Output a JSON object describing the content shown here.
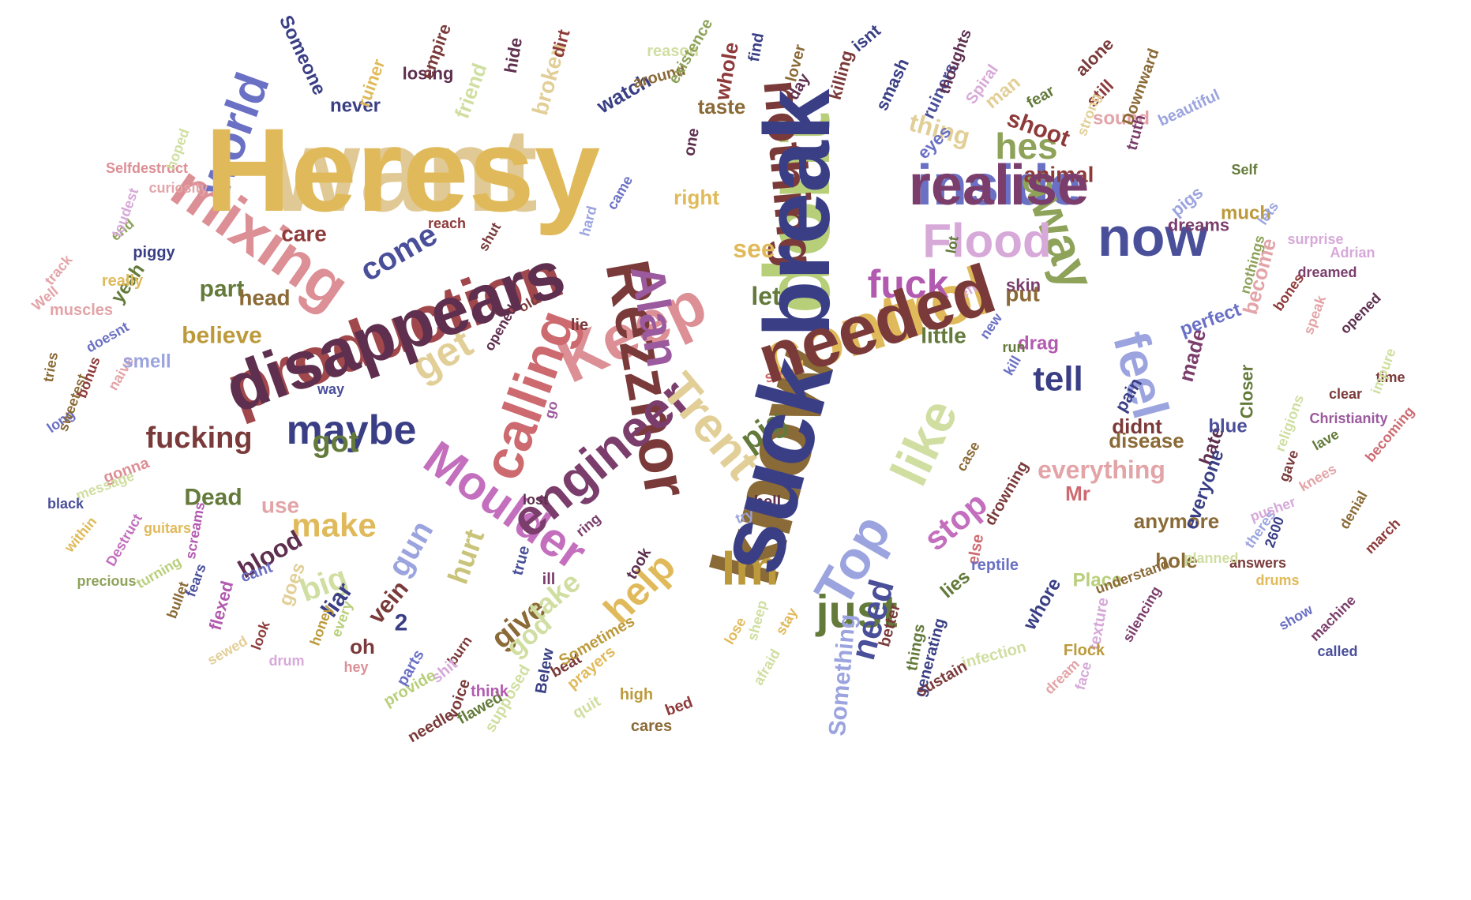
{
  "words": [
    {
      "text": "want",
      "color": "#e0c995"
    },
    {
      "text": "dont",
      "color": "#b8cf7a"
    },
    {
      "text": "know",
      "color": "#8a6a36"
    },
    {
      "text": "production",
      "color": "#a0484c"
    },
    {
      "text": "control",
      "color": "#e0ba5a"
    },
    {
      "text": "inside",
      "color": "#6a70c4"
    },
    {
      "text": "Keep",
      "color": "#dc8f95"
    },
    {
      "text": "Rezznor",
      "color": "#7b3a3a"
    },
    {
      "text": "calling",
      "color": "#cd6a70"
    },
    {
      "text": "Moulder",
      "color": "#c36fbe"
    },
    {
      "text": "engineer",
      "color": "#7b3e6c"
    },
    {
      "text": "Trent",
      "color": "#e2cf98"
    },
    {
      "text": "away",
      "color": "#8ea25a"
    },
    {
      "text": "mixing",
      "color": "#dc8f95"
    },
    {
      "text": "now",
      "color": "#4a4f9a"
    },
    {
      "text": "Top",
      "color": "#9ba4df"
    },
    {
      "text": "Alan",
      "color": "#9c5a9e"
    },
    {
      "text": "nothing",
      "color": "#7b3a3a"
    },
    {
      "text": "Flood",
      "color": "#d7a9d9"
    },
    {
      "text": "like",
      "color": "#d0dea1"
    },
    {
      "text": "feel",
      "color": "#9ba4df"
    },
    {
      "text": "Im",
      "color": "#bc9a3c"
    },
    {
      "text": "world",
      "color": "#6a70c4"
    },
    {
      "text": "help",
      "color": "#e0ba5a"
    },
    {
      "text": "maybe",
      "color": "#3a3f85"
    },
    {
      "text": "get",
      "color": "#e2cf98"
    },
    {
      "text": "just",
      "color": "#637a3a"
    },
    {
      "text": "fuck",
      "color": "#b25ab0"
    },
    {
      "text": "hes",
      "color": "#8ea25a"
    },
    {
      "text": "make",
      "color": "#e0ba5a"
    },
    {
      "text": "come",
      "color": "#4a4f9a"
    },
    {
      "text": "tell",
      "color": "#3a3f85"
    },
    {
      "text": "need",
      "color": "#4a4f9a"
    },
    {
      "text": "stop",
      "color": "#c36fbe"
    },
    {
      "text": "everything",
      "color": "#e3a4a8"
    },
    {
      "text": "Something",
      "color": "#9ba4df"
    },
    {
      "text": "shoot",
      "color": "#8e3a3a"
    },
    {
      "text": "thing",
      "color": "#e2cf98"
    },
    {
      "text": "animal",
      "color": "#8e3a3a"
    },
    {
      "text": "give",
      "color": "#8a6a36"
    },
    {
      "text": "take",
      "color": "#d0dea1"
    },
    {
      "text": "god",
      "color": "#d0dea1"
    },
    {
      "text": "hurt",
      "color": "#c9c47a"
    },
    {
      "text": "pig",
      "color": "#637a3a"
    },
    {
      "text": "let",
      "color": "#637a3a"
    },
    {
      "text": "see",
      "color": "#e0ba5a"
    },
    {
      "text": "big",
      "color": "#d0dea1"
    },
    {
      "text": "gun",
      "color": "#9ba4df"
    },
    {
      "text": "blood",
      "color": "#5e2f4f"
    },
    {
      "text": "got",
      "color": "#637a3a"
    },
    {
      "text": "fucking",
      "color": "#7b3a3a"
    },
    {
      "text": "Dead",
      "color": "#637a3a"
    },
    {
      "text": "use",
      "color": "#e3a4a8"
    },
    {
      "text": "believe",
      "color": "#bc9a3c"
    },
    {
      "text": "part",
      "color": "#637a3a"
    },
    {
      "text": "head",
      "color": "#8a6a36"
    },
    {
      "text": "care",
      "color": "#8e3a3a"
    },
    {
      "text": "didnt",
      "color": "#7b3a3a"
    },
    {
      "text": "disease",
      "color": "#8a6a36"
    },
    {
      "text": "anymore",
      "color": "#8a6a36"
    },
    {
      "text": "made",
      "color": "#7b3e6c"
    },
    {
      "text": "put",
      "color": "#8a6a36"
    },
    {
      "text": "little",
      "color": "#637a3a"
    },
    {
      "text": "Mr",
      "color": "#cd6a70"
    },
    {
      "text": "hole",
      "color": "#8a6a36"
    },
    {
      "text": "whore",
      "color": "#3a3f85"
    },
    {
      "text": "lies",
      "color": "#637a3a"
    },
    {
      "text": "Place",
      "color": "#b8cf7a"
    },
    {
      "text": "hate",
      "color": "#5e2f4f"
    },
    {
      "text": "everyone",
      "color": "#3a3f85"
    },
    {
      "text": "blue",
      "color": "#4a4f9a"
    },
    {
      "text": "Closer",
      "color": "#637a3a"
    },
    {
      "text": "pain",
      "color": "#3a3f85"
    },
    {
      "text": "drag",
      "color": "#b25ab0"
    },
    {
      "text": "skin",
      "color": "#7b3e6c"
    },
    {
      "text": "perfect",
      "color": "#6a70c4"
    },
    {
      "text": "become",
      "color": "#e3a4a8"
    },
    {
      "text": "much",
      "color": "#bc9a3c"
    },
    {
      "text": "pigs",
      "color": "#9ba4df"
    },
    {
      "text": "dreams",
      "color": "#7b3e6c"
    },
    {
      "text": "sound",
      "color": "#e3a4a8"
    },
    {
      "text": "still",
      "color": "#8e3a3a"
    },
    {
      "text": "fear",
      "color": "#637a3a"
    },
    {
      "text": "man",
      "color": "#e2cf98"
    },
    {
      "text": "eyes",
      "color": "#6a70c4"
    },
    {
      "text": "ruiners",
      "color": "#4a4f9a"
    },
    {
      "text": "smash",
      "color": "#3a3f85"
    },
    {
      "text": "killing",
      "color": "#7b3a3a"
    },
    {
      "text": "whole",
      "color": "#8e3a3a"
    },
    {
      "text": "taste",
      "color": "#8a6a36"
    },
    {
      "text": "watch",
      "color": "#3a3f85"
    },
    {
      "text": "broken",
      "color": "#e2cf98"
    },
    {
      "text": "friend",
      "color": "#d0dea1"
    },
    {
      "text": "never",
      "color": "#3a3f85"
    },
    {
      "text": "losing",
      "color": "#5e2f4f"
    },
    {
      "text": "reason",
      "color": "#d0dea1"
    },
    {
      "text": "around",
      "color": "#8a6a36"
    },
    {
      "text": "one",
      "color": "#5e2f4f"
    },
    {
      "text": "right",
      "color": "#e0ba5a"
    },
    {
      "text": "Someone",
      "color": "#3a3f85"
    },
    {
      "text": "ruiner",
      "color": "#e0ba5a"
    },
    {
      "text": "empire",
      "color": "#7b3a3a"
    },
    {
      "text": "hide",
      "color": "#5e2f4f"
    },
    {
      "text": "dirt",
      "color": "#8e3a3a"
    },
    {
      "text": "existence",
      "color": "#8ea25a"
    },
    {
      "text": "find",
      "color": "#3a3f85"
    },
    {
      "text": "lover",
      "color": "#8a6a36"
    },
    {
      "text": "isnt",
      "color": "#3a3f85"
    },
    {
      "text": "thoughts",
      "color": "#5e2f4f"
    },
    {
      "text": "Spiral",
      "color": "#d7a9d9"
    },
    {
      "text": "alone",
      "color": "#7b3a3a"
    },
    {
      "text": "Downward",
      "color": "#8a6a36"
    },
    {
      "text": "strong",
      "color": "#e2cf98"
    },
    {
      "text": "day",
      "color": "#5e2f4f"
    },
    {
      "text": "beautiful",
      "color": "#9ba4df"
    },
    {
      "text": "truth",
      "color": "#7b3e6c"
    },
    {
      "text": "Self",
      "color": "#637a3a"
    },
    {
      "text": "lets",
      "color": "#9ba4df"
    },
    {
      "text": "surprise",
      "color": "#d7a9d9"
    },
    {
      "text": "Adrian",
      "color": "#d7a9d9"
    },
    {
      "text": "dreamed",
      "color": "#7b3e6c"
    },
    {
      "text": "nothings",
      "color": "#8ea25a"
    },
    {
      "text": "bones",
      "color": "#8e3a3a"
    },
    {
      "text": "speak",
      "color": "#e3a4a8"
    },
    {
      "text": "opened",
      "color": "#5e2f4f"
    },
    {
      "text": "time",
      "color": "#7b3a3a"
    },
    {
      "text": "clear",
      "color": "#7b3a3a"
    },
    {
      "text": "impure",
      "color": "#d0dea1"
    },
    {
      "text": "religions",
      "color": "#d0dea1"
    },
    {
      "text": "Christianity",
      "color": "#9c5a9e"
    },
    {
      "text": "becoming",
      "color": "#cd6a70"
    },
    {
      "text": "lave",
      "color": "#637a3a"
    },
    {
      "text": "gave",
      "color": "#7b3a3a"
    },
    {
      "text": "knees",
      "color": "#e3a4a8"
    },
    {
      "text": "denial",
      "color": "#8a6a36"
    },
    {
      "text": "march",
      "color": "#8e3a3a"
    },
    {
      "text": "theres",
      "color": "#9ba4df"
    },
    {
      "text": "2600",
      "color": "#3a3f85"
    },
    {
      "text": "pusher",
      "color": "#d7a9d9"
    },
    {
      "text": "answers",
      "color": "#7b3a3a"
    },
    {
      "text": "drums",
      "color": "#e0ba5a"
    },
    {
      "text": "show",
      "color": "#6a70c4"
    },
    {
      "text": "machine",
      "color": "#7b3e6c"
    },
    {
      "text": "called",
      "color": "#4a4f9a"
    },
    {
      "text": "silencing",
      "color": "#7b3e6c"
    },
    {
      "text": "understand",
      "color": "#8a6a36"
    },
    {
      "text": "planned",
      "color": "#d0dea1"
    },
    {
      "text": "texture",
      "color": "#d7a9d9"
    },
    {
      "text": "face",
      "color": "#d7a9d9"
    },
    {
      "text": "dream",
      "color": "#e3a4a8"
    },
    {
      "text": "Flock",
      "color": "#bc9a3c"
    },
    {
      "text": "infection",
      "color": "#d0dea1"
    },
    {
      "text": "generating",
      "color": "#3a3f85"
    },
    {
      "text": "sustain",
      "color": "#7b3a3a"
    },
    {
      "text": "things",
      "color": "#637a3a"
    },
    {
      "text": "better",
      "color": "#7b3a3a"
    },
    {
      "text": "else",
      "color": "#cd6a70"
    },
    {
      "text": "reptile",
      "color": "#6a70c4"
    },
    {
      "text": "drowning",
      "color": "#7b3a3a"
    },
    {
      "text": "case",
      "color": "#8a6a36"
    },
    {
      "text": "kill",
      "color": "#6a70c4"
    },
    {
      "text": "run",
      "color": "#637a3a"
    },
    {
      "text": "new",
      "color": "#6a70c4"
    },
    {
      "text": "left",
      "color": "#d7a9d9"
    },
    {
      "text": "lot",
      "color": "#637a3a"
    },
    {
      "text": "lie",
      "color": "#7b3a3a"
    },
    {
      "text": "opened",
      "color": "#5e2f4f"
    },
    {
      "text": "old",
      "color": "#7b3a3a"
    },
    {
      "text": "way",
      "color": "#4a4f9a"
    },
    {
      "text": "go",
      "color": "#9c5a9e"
    },
    {
      "text": "stay",
      "color": "#e0ba5a"
    },
    {
      "text": "lose",
      "color": "#e0ba5a"
    },
    {
      "text": "sex",
      "color": "#cd6a70"
    },
    {
      "text": "hell",
      "color": "#5e2f4f"
    },
    {
      "text": "lost",
      "color": "#5e2f4f"
    },
    {
      "text": "try",
      "color": "#9ba4df"
    },
    {
      "text": "ring",
      "color": "#7b3e6c"
    },
    {
      "text": "took",
      "color": "#5e2f4f"
    },
    {
      "text": "sheep",
      "color": "#d0dea1"
    },
    {
      "text": "afraid",
      "color": "#d0dea1"
    },
    {
      "text": "true",
      "color": "#4a4f9a"
    },
    {
      "text": "ill",
      "color": "#7b3e6c"
    },
    {
      "text": "vein",
      "color": "#7b3a3a"
    },
    {
      "text": "2",
      "color": "#3a3f85"
    },
    {
      "text": "liar",
      "color": "#3a3f85"
    },
    {
      "text": "oh",
      "color": "#7b3a3a"
    },
    {
      "text": "burn",
      "color": "#7b3a3a"
    },
    {
      "text": "hey",
      "color": "#dc8f95"
    },
    {
      "text": "honey",
      "color": "#bc9a3c"
    },
    {
      "text": "every",
      "color": "#b8cf7a"
    },
    {
      "text": "drum",
      "color": "#d7a9d9"
    },
    {
      "text": "goes",
      "color": "#e2cf98"
    },
    {
      "text": "cant",
      "color": "#6a70c4"
    },
    {
      "text": "sewed",
      "color": "#e2cf98"
    },
    {
      "text": "look",
      "color": "#8e3a3a"
    },
    {
      "text": "bullet",
      "color": "#8a6a36"
    },
    {
      "text": "fears",
      "color": "#4a4f9a"
    },
    {
      "text": "flexed",
      "color": "#b25ab0"
    },
    {
      "text": "turning",
      "color": "#b8cf7a"
    },
    {
      "text": "screams",
      "color": "#b25ab0"
    },
    {
      "text": "Destruct",
      "color": "#c36fbe"
    },
    {
      "text": "precious",
      "color": "#8ea25a"
    },
    {
      "text": "within",
      "color": "#e0ba5a"
    },
    {
      "text": "guitars",
      "color": "#e0ba5a"
    },
    {
      "text": "gonna",
      "color": "#dc8f95"
    },
    {
      "text": "message",
      "color": "#d0dea1"
    },
    {
      "text": "black",
      "color": "#4a4f9a"
    },
    {
      "text": "long",
      "color": "#6a70c4"
    },
    {
      "text": "sweetest",
      "color": "#8a6a36"
    },
    {
      "text": "tries",
      "color": "#8a6a36"
    },
    {
      "text": "bonus",
      "color": "#8e3a3a"
    },
    {
      "text": "naive",
      "color": "#e3a4a8"
    },
    {
      "text": "doesnt",
      "color": "#6a70c4"
    },
    {
      "text": "yeah",
      "color": "#637a3a"
    },
    {
      "text": "muscles",
      "color": "#e3a4a8"
    },
    {
      "text": "smell",
      "color": "#9ba4df"
    },
    {
      "text": "Well",
      "color": "#e3a4a8"
    },
    {
      "text": "track",
      "color": "#e3a4a8"
    },
    {
      "text": "really",
      "color": "#e0ba5a"
    },
    {
      "text": "piggy",
      "color": "#3a3f85"
    },
    {
      "text": "end",
      "color": "#8ea25a"
    },
    {
      "text": "loudest",
      "color": "#d7a9d9"
    },
    {
      "text": "curiosity",
      "color": "#e3a4a8"
    },
    {
      "text": "Selfdestruct",
      "color": "#dc8f95"
    },
    {
      "text": "hoped",
      "color": "#d0dea1"
    },
    {
      "text": "reach",
      "color": "#8e3a3a"
    },
    {
      "text": "shut",
      "color": "#7b3a3a"
    },
    {
      "text": "hard",
      "color": "#9ba4df"
    },
    {
      "text": "came",
      "color": "#6a70c4"
    },
    {
      "text": "cares",
      "color": "#8a6a36"
    },
    {
      "text": "high",
      "color": "#bc9a3c"
    },
    {
      "text": "bed",
      "color": "#8e3a3a"
    },
    {
      "text": "quit",
      "color": "#d0dea1"
    },
    {
      "text": "beat",
      "color": "#7b3a3a"
    },
    {
      "text": "Sometimes",
      "color": "#bc9a3c"
    },
    {
      "text": "prayers",
      "color": "#e0ba5a"
    },
    {
      "text": "Belew",
      "color": "#3a3f85"
    },
    {
      "text": "supposed",
      "color": "#d0dea1"
    },
    {
      "text": "flawed",
      "color": "#637a3a"
    },
    {
      "text": "needle",
      "color": "#7b3a3a"
    },
    {
      "text": "think",
      "color": "#b25ab0"
    },
    {
      "text": "shit",
      "color": "#d7a9d9"
    },
    {
      "text": "parts",
      "color": "#6a70c4"
    },
    {
      "text": "voice",
      "color": "#7b3a3a"
    },
    {
      "text": "provide",
      "color": "#b8cf7a"
    },
    {
      "text": "Heresy",
      "color": "#e0ba5a"
    },
    {
      "text": "break",
      "color": "#3a3f85"
    },
    {
      "text": "suck",
      "color": "#3a3f85"
    },
    {
      "text": "disappears",
      "color": "#5e2f4f"
    },
    {
      "text": "needed",
      "color": "#7b3a3a"
    },
    {
      "text": "realise",
      "color": "#7b3e6c"
    }
  ]
}
